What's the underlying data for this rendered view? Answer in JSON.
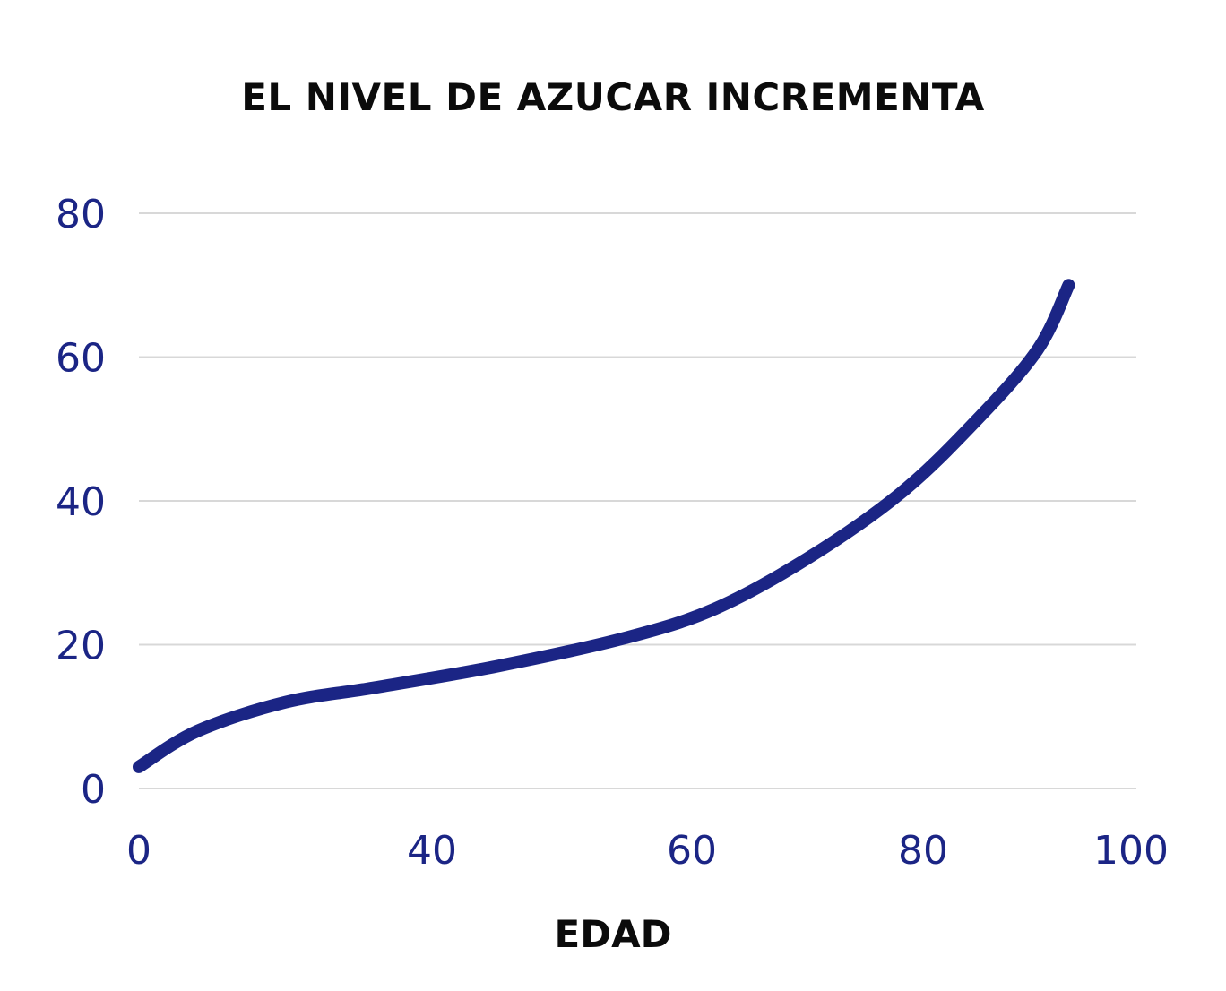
{
  "chart_data": {
    "type": "line",
    "title": "EL NIVEL DE AZUCAR INCREMENTA",
    "xlabel": "EDAD",
    "ylabel": "",
    "x_ticks": [
      {
        "value": 0,
        "label": "0"
      },
      {
        "value": 40,
        "label": "40"
      },
      {
        "value": 60,
        "label": "60"
      },
      {
        "value": 80,
        "label": "80"
      },
      {
        "value": 100,
        "label": "100"
      }
    ],
    "y_ticks": [
      {
        "value": 0,
        "label": "0"
      },
      {
        "value": 20,
        "label": "20"
      },
      {
        "value": 40,
        "label": "40"
      },
      {
        "value": 60,
        "label": "60"
      },
      {
        "value": 80,
        "label": "80"
      }
    ],
    "ylim": [
      0,
      80
    ],
    "grid": true,
    "legend": "none",
    "series": [
      {
        "color": "#1b2585",
        "points": [
          {
            "x": 0,
            "y": 3
          },
          {
            "x": 8,
            "y": 8
          },
          {
            "x": 20,
            "y": 12
          },
          {
            "x": 32,
            "y": 14
          },
          {
            "x": 45,
            "y": 17
          },
          {
            "x": 55,
            "y": 21
          },
          {
            "x": 62,
            "y": 25
          },
          {
            "x": 70,
            "y": 32
          },
          {
            "x": 78,
            "y": 41
          },
          {
            "x": 85,
            "y": 51
          },
          {
            "x": 91,
            "y": 61
          },
          {
            "x": 94,
            "y": 70
          }
        ]
      }
    ],
    "colors": {
      "axis_text": "#1b2585",
      "grid": "#d8d8d8",
      "title": "#0b0b0b"
    }
  }
}
